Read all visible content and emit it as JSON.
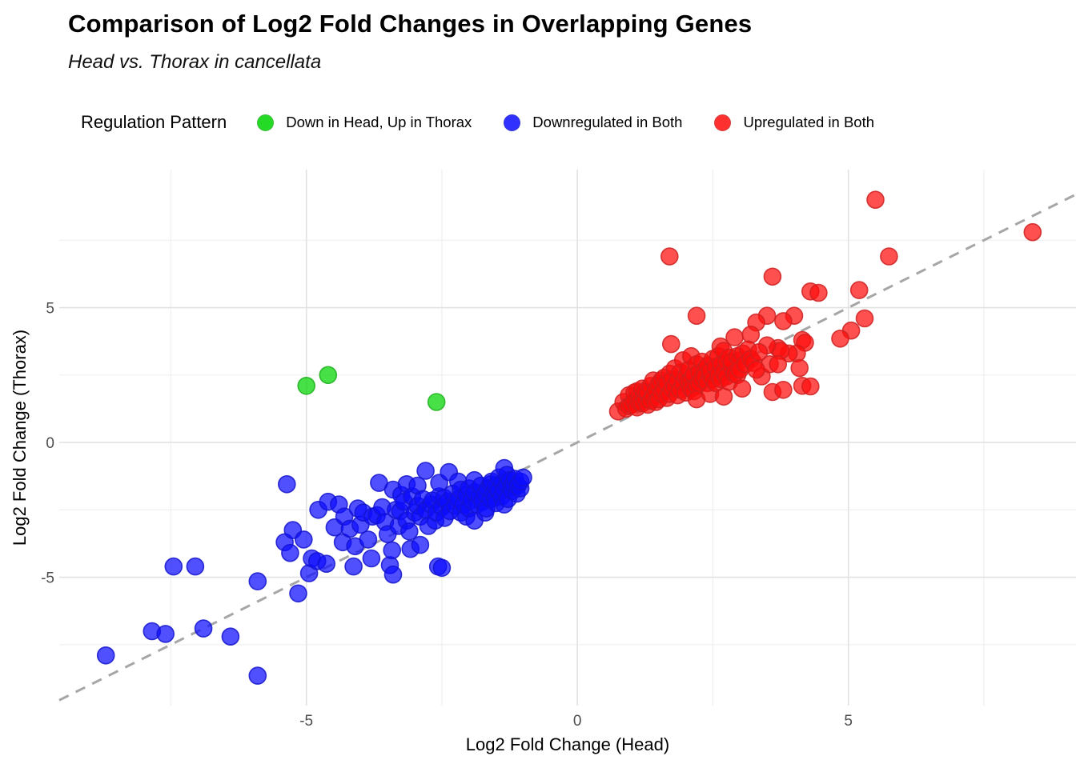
{
  "header": {
    "title": "Comparison of Log2 Fold Changes in Overlapping Genes",
    "subtitle": "Head vs. Thorax in cancellata"
  },
  "legend": {
    "title": "Regulation Pattern",
    "position": "top"
  },
  "chart_data": {
    "type": "scatter",
    "title": "Comparison of Log2 Fold Changes in Overlapping Genes",
    "subtitle": "Head vs. Thorax in cancellata",
    "xlabel": "Log2 Fold Change (Head)",
    "ylabel": "Log2 Fold Change (Thorax)",
    "xlim": [
      -9.56,
      9.2
    ],
    "ylim": [
      -9.76,
      10.12
    ],
    "xticks": [
      -5,
      0,
      5
    ],
    "yticks": [
      -5,
      0,
      5
    ],
    "minor_xticks": [
      -7.5,
      -2.5,
      2.5,
      7.5
    ],
    "minor_yticks": [
      -7.5,
      -2.5,
      2.5,
      7.5
    ],
    "grid": true,
    "legend_title": "Regulation Pattern",
    "legend_position": "top",
    "identity_line": {
      "equation": "y = x",
      "style": "dashed",
      "color": "#a6a6a6"
    },
    "colors": {
      "green": "#00d400",
      "blue": "#0d0dff",
      "red": "#ff0d0d"
    },
    "series": [
      {
        "name": "Down in Head, Up in Thorax",
        "color": "#00d400",
        "stroke": "#1faf1f",
        "points": [
          [
            -5.0,
            2.1
          ],
          [
            -4.6,
            2.5
          ],
          [
            -2.6,
            1.5
          ]
        ]
      },
      {
        "name": "Downregulated in Both",
        "color": "#0d0dff",
        "stroke": "#1414cc",
        "points": [
          [
            -8.7,
            -7.9
          ],
          [
            -7.85,
            -7.0
          ],
          [
            -7.6,
            -7.1
          ],
          [
            -7.45,
            -4.6
          ],
          [
            -7.05,
            -4.6
          ],
          [
            -6.9,
            -6.9
          ],
          [
            -6.4,
            -7.2
          ],
          [
            -5.9,
            -8.65
          ],
          [
            -5.9,
            -5.15
          ],
          [
            -5.15,
            -5.6
          ],
          [
            -5.4,
            -3.7
          ],
          [
            -5.36,
            -1.55
          ],
          [
            -5.3,
            -4.1
          ],
          [
            -5.25,
            -3.25
          ],
          [
            -5.05,
            -3.6
          ],
          [
            -4.95,
            -4.85
          ],
          [
            -4.9,
            -4.3
          ],
          [
            -4.8,
            -4.4
          ],
          [
            -4.78,
            -2.5
          ],
          [
            -4.63,
            -4.5
          ],
          [
            -4.6,
            -2.2
          ],
          [
            -4.48,
            -3.15
          ],
          [
            -4.4,
            -2.3
          ],
          [
            -4.33,
            -3.7
          ],
          [
            -4.3,
            -2.75
          ],
          [
            -4.2,
            -3.2
          ],
          [
            -4.13,
            -4.6
          ],
          [
            -4.1,
            -3.85
          ],
          [
            -4.05,
            -2.45
          ],
          [
            -4.0,
            -3.05
          ],
          [
            -3.95,
            -2.6
          ],
          [
            -3.86,
            -3.6
          ],
          [
            -3.8,
            -4.3
          ],
          [
            -3.78,
            -2.75
          ],
          [
            -3.7,
            -2.7
          ],
          [
            -3.66,
            -1.5
          ],
          [
            -3.6,
            -2.4
          ],
          [
            -3.55,
            -2.95
          ],
          [
            -3.5,
            -3.4
          ],
          [
            -3.46,
            -4.55
          ],
          [
            -3.42,
            -4.0
          ],
          [
            -3.4,
            -4.9
          ],
          [
            -3.4,
            -1.75
          ],
          [
            -3.35,
            -2.5
          ],
          [
            -3.3,
            -3.1
          ],
          [
            -3.27,
            -2.55
          ],
          [
            -3.25,
            -1.95
          ],
          [
            -3.2,
            -2.2
          ],
          [
            -3.15,
            -2.9
          ],
          [
            -3.15,
            -1.55
          ],
          [
            -3.1,
            -3.3
          ],
          [
            -3.08,
            -3.95
          ],
          [
            -3.05,
            -2.0
          ],
          [
            -3.0,
            -2.6
          ],
          [
            -2.95,
            -2.35
          ],
          [
            -2.95,
            -1.6
          ],
          [
            -2.9,
            -3.8
          ],
          [
            -2.9,
            -2.75
          ],
          [
            -2.85,
            -2.1
          ],
          [
            -2.8,
            -1.05
          ],
          [
            -2.8,
            -2.5
          ],
          [
            -2.75,
            -3.1
          ],
          [
            -2.7,
            -2.3
          ],
          [
            -2.67,
            -2.15
          ],
          [
            -2.62,
            -2.9
          ],
          [
            -2.6,
            -2.6
          ],
          [
            -2.57,
            -4.6
          ],
          [
            -2.55,
            -2.0
          ],
          [
            -2.55,
            -1.5
          ],
          [
            -2.5,
            -4.65
          ],
          [
            -2.5,
            -2.4
          ],
          [
            -2.46,
            -2.05
          ],
          [
            -2.45,
            -2.8
          ],
          [
            -2.4,
            -2.2
          ],
          [
            -2.37,
            -1.1
          ],
          [
            -2.35,
            -2.55
          ],
          [
            -2.3,
            -1.9
          ],
          [
            -2.25,
            -2.35
          ],
          [
            -2.2,
            -2.1
          ],
          [
            -2.2,
            -1.45
          ],
          [
            -2.15,
            -2.6
          ],
          [
            -2.15,
            -1.75
          ],
          [
            -2.1,
            -2.3
          ],
          [
            -2.05,
            -2.75
          ],
          [
            -2.05,
            -1.95
          ],
          [
            -2.0,
            -2.45
          ],
          [
            -2.0,
            -1.7
          ],
          [
            -1.95,
            -2.15
          ],
          [
            -1.9,
            -2.9
          ],
          [
            -1.9,
            -1.85
          ],
          [
            -1.9,
            -1.4
          ],
          [
            -1.85,
            -2.3
          ],
          [
            -1.8,
            -2.0
          ],
          [
            -1.78,
            -1.6
          ],
          [
            -1.75,
            -2.2
          ],
          [
            -1.7,
            -2.6
          ],
          [
            -1.7,
            -1.9
          ],
          [
            -1.68,
            -2.45
          ],
          [
            -1.65,
            -1.7
          ],
          [
            -1.6,
            -2.1
          ],
          [
            -1.6,
            -1.55
          ],
          [
            -1.58,
            -1.45
          ],
          [
            -1.55,
            -1.9
          ],
          [
            -1.52,
            -2.05
          ],
          [
            -1.5,
            -2.25
          ],
          [
            -1.5,
            -1.6
          ],
          [
            -1.45,
            -1.8
          ],
          [
            -1.45,
            -1.3
          ],
          [
            -1.4,
            -2.0
          ],
          [
            -1.38,
            -1.5
          ],
          [
            -1.35,
            -2.3
          ],
          [
            -1.35,
            -1.75
          ],
          [
            -1.35,
            -0.95
          ],
          [
            -1.3,
            -1.55
          ],
          [
            -1.3,
            -1.2
          ],
          [
            -1.28,
            -2.1
          ],
          [
            -1.25,
            -1.4
          ],
          [
            -1.22,
            -1.65
          ],
          [
            -1.2,
            -1.8
          ],
          [
            -1.18,
            -1.55
          ],
          [
            -1.15,
            -1.35
          ],
          [
            -1.12,
            -1.9
          ],
          [
            -1.1,
            -1.6
          ],
          [
            -1.05,
            -1.7
          ],
          [
            -1.05,
            -1.45
          ],
          [
            -1.0,
            -1.3
          ]
        ]
      },
      {
        "name": "Upregulated in Both",
        "color": "#ff0d0d",
        "stroke": "#cc2020",
        "points": [
          [
            5.5,
            9.0
          ],
          [
            8.4,
            7.8
          ],
          [
            1.7,
            6.9
          ],
          [
            5.75,
            6.9
          ],
          [
            3.6,
            6.15
          ],
          [
            5.2,
            5.65
          ],
          [
            4.3,
            5.6
          ],
          [
            4.45,
            5.55
          ],
          [
            2.2,
            4.7
          ],
          [
            3.5,
            4.7
          ],
          [
            4.0,
            4.7
          ],
          [
            5.3,
            4.6
          ],
          [
            3.3,
            4.45
          ],
          [
            3.8,
            4.5
          ],
          [
            5.05,
            4.15
          ],
          [
            4.85,
            3.85
          ],
          [
            2.9,
            3.9
          ],
          [
            3.2,
            4.0
          ],
          [
            4.15,
            3.8
          ],
          [
            4.2,
            3.7
          ],
          [
            1.73,
            3.65
          ],
          [
            4.05,
            3.3
          ],
          [
            3.9,
            3.3
          ],
          [
            3.7,
            3.5
          ],
          [
            3.75,
            3.4
          ],
          [
            3.5,
            3.6
          ],
          [
            2.64,
            3.56
          ],
          [
            0.75,
            1.15
          ],
          [
            0.85,
            1.5
          ],
          [
            0.9,
            1.25
          ],
          [
            0.95,
            1.75
          ],
          [
            0.95,
            1.35
          ],
          [
            1.0,
            1.4
          ],
          [
            1.05,
            1.55
          ],
          [
            1.05,
            1.85
          ],
          [
            1.1,
            1.3
          ],
          [
            1.1,
            1.9
          ],
          [
            1.15,
            1.7
          ],
          [
            1.15,
            1.5
          ],
          [
            1.2,
            1.45
          ],
          [
            1.2,
            2.0
          ],
          [
            1.25,
            1.6
          ],
          [
            1.25,
            1.9
          ],
          [
            1.3,
            1.85
          ],
          [
            1.3,
            1.4
          ],
          [
            1.35,
            2.1
          ],
          [
            1.35,
            1.55
          ],
          [
            1.4,
            1.7
          ],
          [
            1.4,
            2.3
          ],
          [
            1.45,
            1.95
          ],
          [
            1.45,
            1.5
          ],
          [
            1.5,
            1.6
          ],
          [
            1.5,
            2.15
          ],
          [
            1.55,
            1.8
          ],
          [
            1.55,
            2.3
          ],
          [
            1.6,
            2.4
          ],
          [
            1.6,
            1.95
          ],
          [
            1.65,
            2.2
          ],
          [
            1.65,
            1.65
          ],
          [
            1.7,
            1.8
          ],
          [
            1.7,
            2.55
          ],
          [
            1.75,
            2.0
          ],
          [
            1.75,
            2.35
          ],
          [
            1.8,
            2.1
          ],
          [
            1.8,
            2.75
          ],
          [
            1.85,
            2.3
          ],
          [
            1.85,
            1.75
          ],
          [
            1.9,
            1.95
          ],
          [
            1.9,
            2.6
          ],
          [
            1.95,
            2.2
          ],
          [
            1.95,
            3.05
          ],
          [
            2.0,
            2.45
          ],
          [
            2.0,
            1.85
          ],
          [
            2.05,
            2.7
          ],
          [
            2.05,
            2.25
          ],
          [
            2.1,
            2.3
          ],
          [
            2.1,
            2.0
          ],
          [
            2.1,
            3.2
          ],
          [
            2.15,
            2.5
          ],
          [
            2.15,
            1.9
          ],
          [
            2.2,
            2.1
          ],
          [
            2.2,
            2.9
          ],
          [
            2.2,
            1.6
          ],
          [
            2.25,
            2.6
          ],
          [
            2.25,
            2.2
          ],
          [
            2.3,
            2.35
          ],
          [
            2.3,
            3.0
          ],
          [
            2.35,
            2.7
          ],
          [
            2.35,
            2.45
          ],
          [
            2.4,
            2.2
          ],
          [
            2.4,
            2.85
          ],
          [
            2.45,
            2.5
          ],
          [
            2.45,
            1.8
          ],
          [
            2.45,
            2.65
          ],
          [
            2.5,
            3.1
          ],
          [
            2.5,
            2.35
          ],
          [
            2.55,
            2.8
          ],
          [
            2.55,
            2.2
          ],
          [
            2.6,
            2.5
          ],
          [
            2.6,
            3.2
          ],
          [
            2.65,
            2.9
          ],
          [
            2.65,
            2.35
          ],
          [
            2.7,
            3.4
          ],
          [
            2.7,
            2.6
          ],
          [
            2.7,
            1.7
          ],
          [
            2.75,
            3.0
          ],
          [
            2.75,
            2.45
          ],
          [
            2.8,
            2.25
          ],
          [
            2.8,
            3.15
          ],
          [
            2.85,
            2.8
          ],
          [
            2.85,
            3.0
          ],
          [
            2.9,
            2.55
          ],
          [
            2.95,
            2.5
          ],
          [
            2.95,
            3.2
          ],
          [
            3.0,
            3.05
          ],
          [
            3.0,
            2.7
          ],
          [
            3.04,
            2.0
          ],
          [
            3.05,
            3.3
          ],
          [
            3.1,
            2.9
          ],
          [
            3.15,
            3.45
          ],
          [
            3.2,
            3.1
          ],
          [
            3.25,
            2.95
          ],
          [
            3.35,
            3.35
          ],
          [
            3.4,
            2.45
          ],
          [
            3.55,
            2.9
          ],
          [
            3.7,
            2.9
          ],
          [
            3.3,
            2.7
          ],
          [
            4.1,
            2.76
          ],
          [
            4.15,
            2.1
          ],
          [
            4.3,
            2.08
          ],
          [
            3.6,
            1.87
          ],
          [
            3.8,
            1.95
          ]
        ]
      }
    ]
  }
}
